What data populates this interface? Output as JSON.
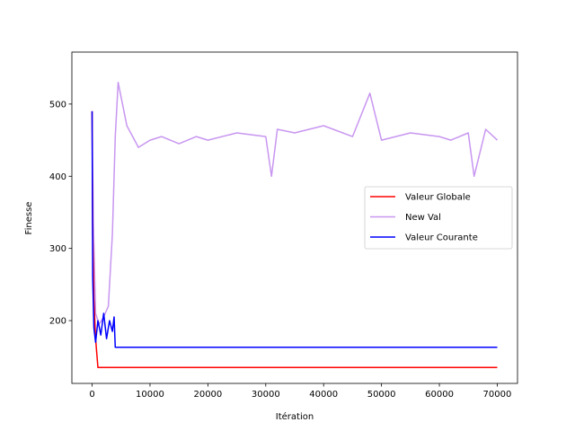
{
  "chart_data": {
    "type": "line",
    "title": "",
    "xlabel": "Itération",
    "ylabel": "Finesse",
    "xlim": [
      -3500,
      73500
    ],
    "ylim": [
      113,
      572
    ],
    "xticks": [
      0,
      10000,
      20000,
      30000,
      40000,
      50000,
      60000,
      70000
    ],
    "yticks": [
      200,
      300,
      400,
      500
    ],
    "grid": false,
    "legend_position": "center-right",
    "series": [
      {
        "name": "Valeur Globale",
        "color": "#ff0000",
        "x": [
          0,
          100,
          300,
          600,
          1000,
          70000
        ],
        "y": [
          490,
          320,
          230,
          175,
          135,
          135
        ]
      },
      {
        "name": "New Val",
        "color": "#c896f0",
        "x": [
          0,
          200,
          600,
          1200,
          2000,
          2800,
          3500,
          4000,
          4500,
          6000,
          8000,
          10000,
          12000,
          15000,
          18000,
          20000,
          25000,
          30000,
          31000,
          32000,
          35000,
          40000,
          45000,
          48000,
          50000,
          55000,
          60000,
          62000,
          65000,
          66000,
          68000,
          70000
        ],
        "y": [
          490,
          340,
          210,
          195,
          205,
          220,
          320,
          455,
          530,
          470,
          440,
          450,
          455,
          445,
          455,
          450,
          460,
          455,
          400,
          465,
          460,
          470,
          455,
          515,
          450,
          460,
          455,
          450,
          460,
          400,
          465,
          450
        ]
      },
      {
        "name": "Valeur Courante",
        "color": "#0000ff",
        "x": [
          0,
          100,
          300,
          600,
          1000,
          1500,
          2000,
          2500,
          3000,
          3500,
          3800,
          4000,
          70000
        ],
        "y": [
          490,
          260,
          190,
          170,
          200,
          180,
          210,
          175,
          200,
          185,
          205,
          163,
          163
        ]
      }
    ]
  }
}
